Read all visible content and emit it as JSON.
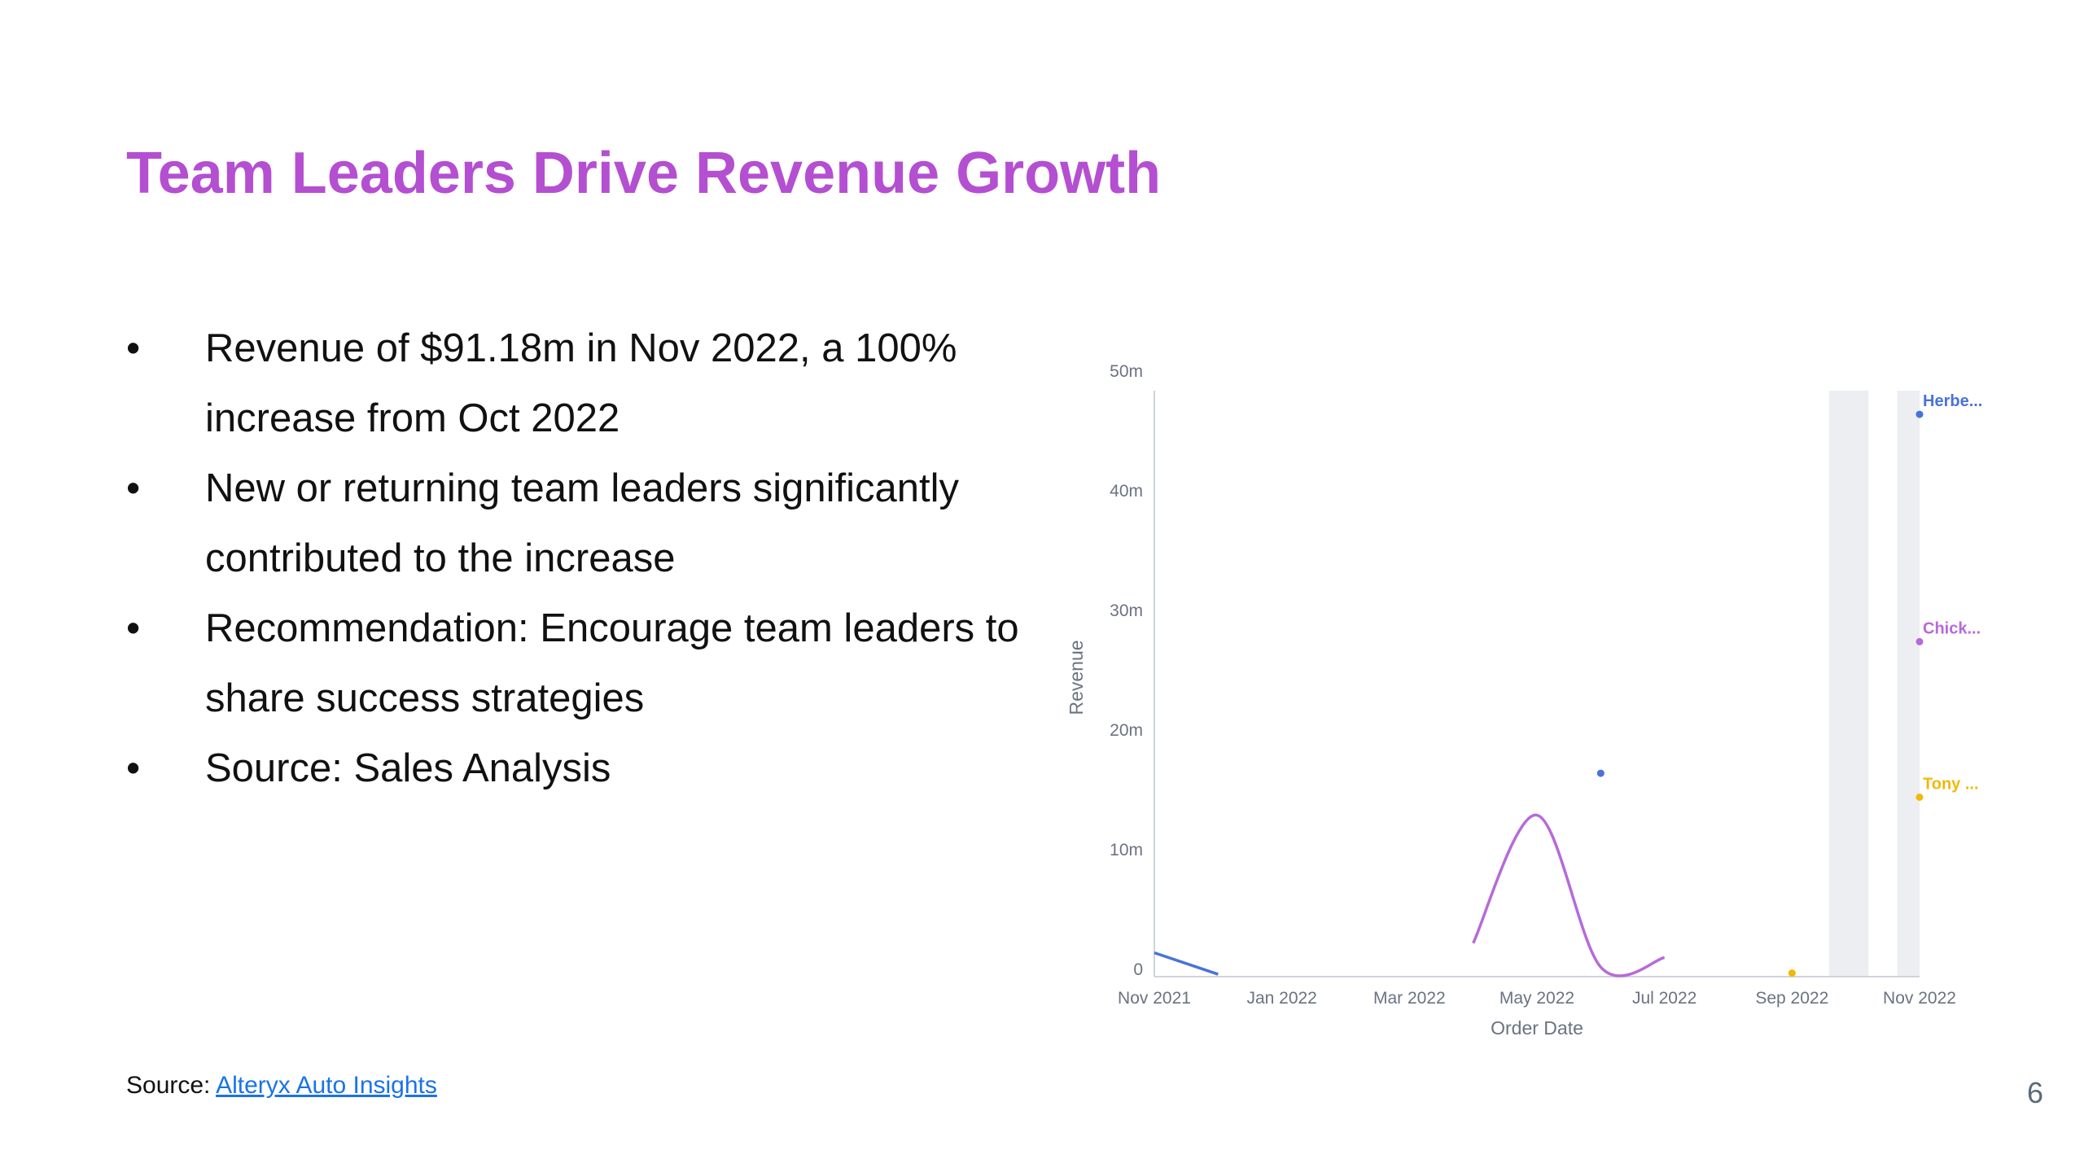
{
  "slide": {
    "title": "Team Leaders Drive Revenue Growth",
    "bullets": [
      {
        "marker": "•",
        "text": "Revenue of $91.18m in Nov 2022, a 100% increase from Oct 2022"
      },
      {
        "marker": "•",
        "text": "New or returning team leaders significantly contributed to the increase"
      },
      {
        "marker": "•",
        "text": "Recommendation: Encourage team leaders to share success strategies"
      },
      {
        "marker": "•",
        "text": "Source: Sales Analysis"
      }
    ],
    "footer": {
      "source_label": "Source:",
      "source_link": "Alteryx Auto Insights"
    },
    "page_number": "6"
  },
  "chart_data": {
    "type": "line",
    "title": "",
    "xlabel": "Order Date",
    "ylabel": "Revenue",
    "x_ticks": [
      "Nov 2021",
      "Jan 2022",
      "Mar 2022",
      "May 2022",
      "Jul 2022",
      "Sep 2022",
      "Nov 2022"
    ],
    "y_ticks": [
      "0",
      "10m",
      "20m",
      "30m",
      "40m",
      "50m"
    ],
    "ylim": [
      0,
      50000000
    ],
    "xlim": [
      "2021-11",
      "2022-11"
    ],
    "grid": false,
    "shaded_months": [
      "2022-10",
      "2022-11"
    ],
    "series": [
      {
        "name": "Herbe...",
        "color": "#4a72d9",
        "points": [
          [
            "2021-11",
            2000000
          ],
          [
            "2021-12",
            200000
          ]
        ],
        "markers": [
          [
            "2022-06",
            17000000
          ],
          [
            "2022-11",
            47000000
          ]
        ]
      },
      {
        "name": "Chick...",
        "color": "#b66ad9",
        "points": [
          [
            "2022-04",
            2800000
          ],
          [
            "2022-05",
            13500000
          ],
          [
            "2022-06",
            800000
          ],
          [
            "2022-07",
            1600000
          ]
        ],
        "markers": [
          [
            "2022-11",
            28000000
          ]
        ]
      },
      {
        "name": "Tony ...",
        "color": "#f2b807",
        "points": [],
        "markers": [
          [
            "2022-09",
            300000
          ],
          [
            "2022-11",
            15000000
          ]
        ]
      }
    ]
  }
}
